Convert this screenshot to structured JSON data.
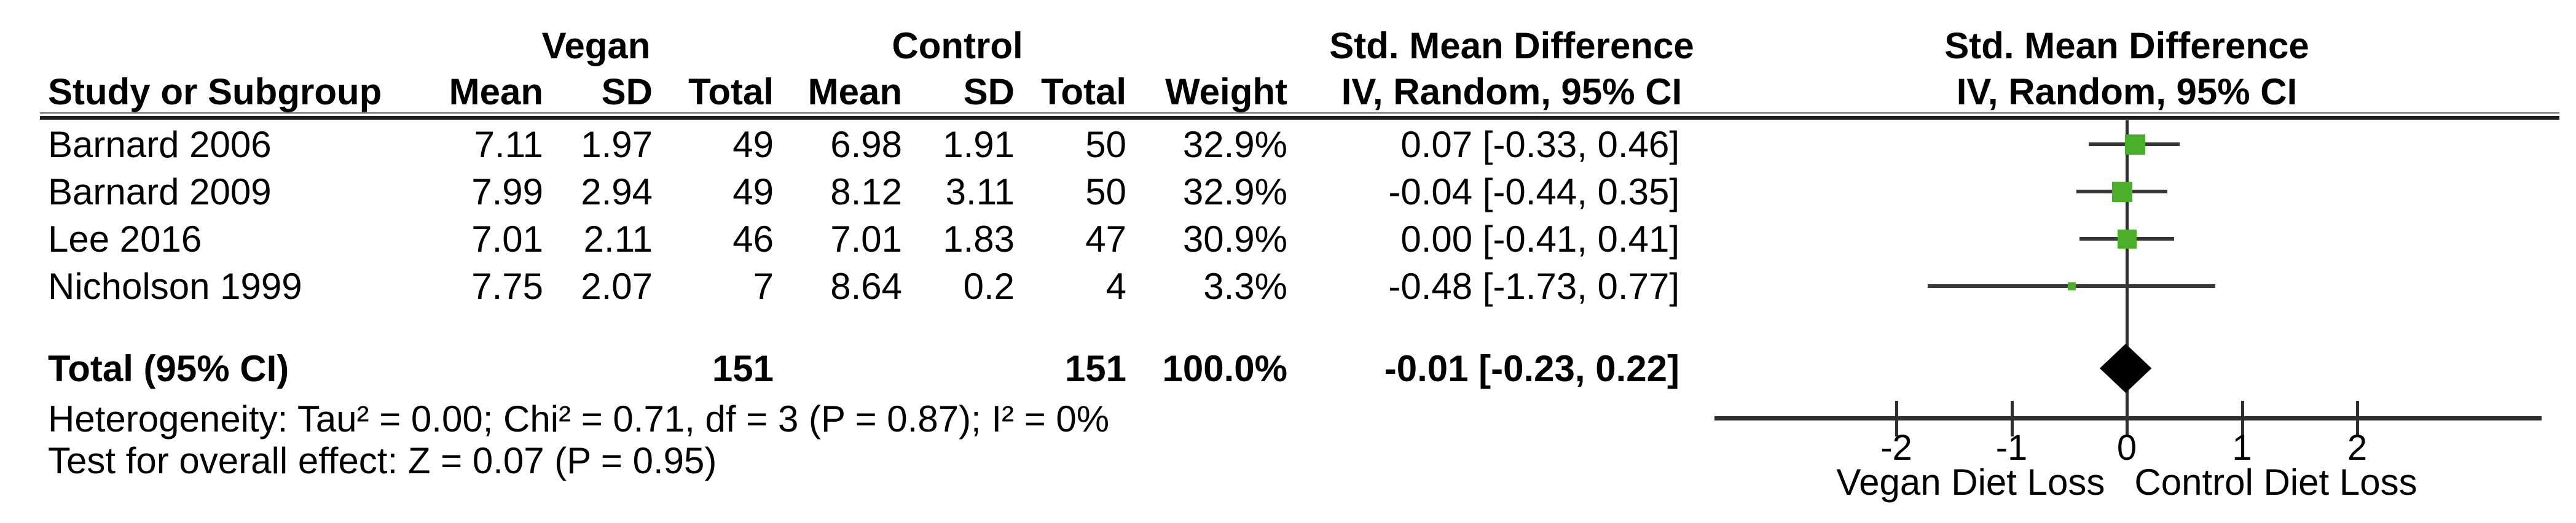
{
  "table": {
    "group1_header": "Vegan",
    "group2_header": "Control",
    "smd_header1": "Std. Mean Difference",
    "smd_header2": "IV, Random, 95% CI",
    "plot_header1": "Std. Mean Difference",
    "plot_header2": "IV, Random, 95% CI",
    "col_study": "Study or Subgroup",
    "col_mean": "Mean",
    "col_sd": "SD",
    "col_total": "Total",
    "col_weight": "Weight",
    "rows": [
      {
        "study": "Barnard 2006",
        "v_mean": "7.11",
        "v_sd": "1.97",
        "v_total": "49",
        "c_mean": "6.98",
        "c_sd": "1.91",
        "c_total": "50",
        "weight": "32.9%",
        "ci": "0.07 [-0.33, 0.46]"
      },
      {
        "study": "Barnard 2009",
        "v_mean": "7.99",
        "v_sd": "2.94",
        "v_total": "49",
        "c_mean": "8.12",
        "c_sd": "3.11",
        "c_total": "50",
        "weight": "32.9%",
        "ci": "-0.04 [-0.44, 0.35]"
      },
      {
        "study": "Lee 2016",
        "v_mean": "7.01",
        "v_sd": "2.11",
        "v_total": "46",
        "c_mean": "7.01",
        "c_sd": "1.83",
        "c_total": "47",
        "weight": "30.9%",
        "ci": "0.00 [-0.41, 0.41]"
      },
      {
        "study": "Nicholson 1999",
        "v_mean": "7.75",
        "v_sd": "2.07",
        "v_total": "7",
        "c_mean": "8.64",
        "c_sd": "0.2",
        "c_total": "4",
        "weight": "3.3%",
        "ci": "-0.48 [-1.73, 0.77]"
      }
    ],
    "total": {
      "label": "Total (95% CI)",
      "v_total": "151",
      "c_total": "151",
      "weight": "100.0%",
      "ci": "-0.01 [-0.23, 0.22]"
    },
    "heterogeneity": "Heterogeneity: Tau² = 0.00; Chi² = 0.71, df = 3 (P = 0.87); I² = 0%",
    "overall_effect": "Test for overall effect: Z = 0.07 (P = 0.95)"
  },
  "chart_data": {
    "type": "forest",
    "effect_measure": "Std. Mean Difference, IV, Random, 95% CI",
    "studies": [
      {
        "name": "Barnard 2006",
        "smd": 0.07,
        "ci_low": -0.33,
        "ci_high": 0.46,
        "weight_pct": 32.9
      },
      {
        "name": "Barnard 2009",
        "smd": -0.04,
        "ci_low": -0.44,
        "ci_high": 0.35,
        "weight_pct": 32.9
      },
      {
        "name": "Lee 2016",
        "smd": 0.0,
        "ci_low": -0.41,
        "ci_high": 0.41,
        "weight_pct": 30.9
      },
      {
        "name": "Nicholson 1999",
        "smd": -0.48,
        "ci_low": -1.73,
        "ci_high": 0.77,
        "weight_pct": 3.3
      }
    ],
    "total": {
      "smd": -0.01,
      "ci_low": -0.23,
      "ci_high": 0.22,
      "weight_pct": 100.0
    },
    "x_ticks": [
      -2,
      -1,
      0,
      1,
      2
    ],
    "xlim": [
      -3.58,
      3.6
    ],
    "axis_label_left": "Vegan Diet Loss",
    "axis_label_right": "Control Diet Loss",
    "marker_color": "#4bae2a",
    "line_color": "#2e2e2e",
    "diamond_color": "#000000",
    "grid": false,
    "legend": false
  }
}
